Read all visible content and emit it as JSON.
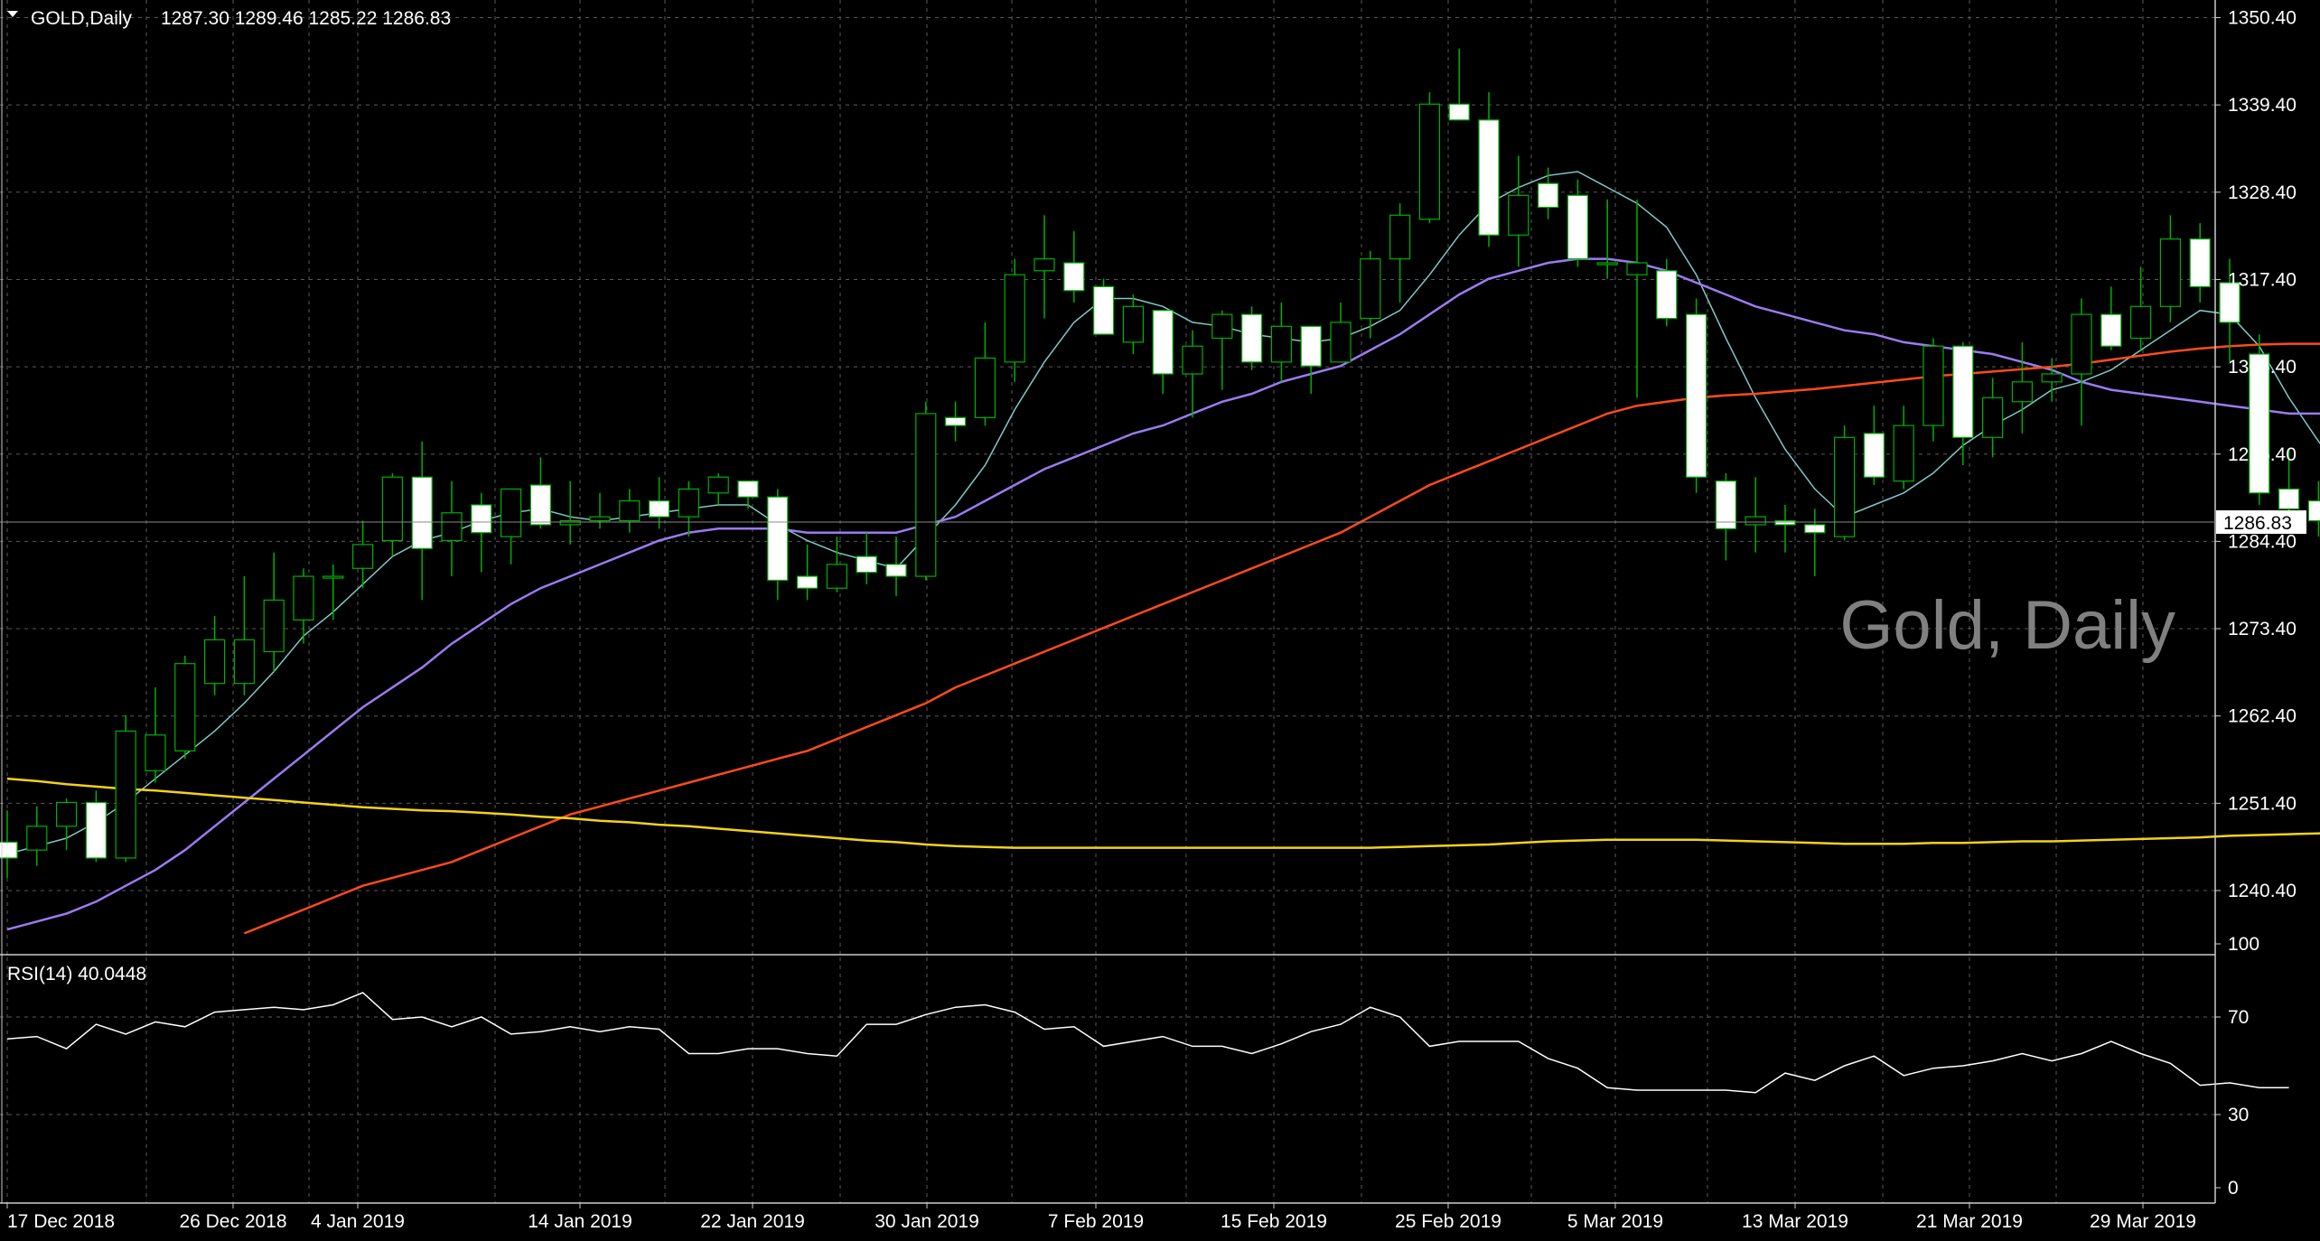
{
  "header": {
    "symbol": "GOLD,Daily",
    "ohlc": "1287.30 1289.46 1285.22 1286.83",
    "watermark": "Gold, Daily"
  },
  "rsi": {
    "label": "RSI(14) 40.0448",
    "levels": [
      100,
      70,
      30,
      0
    ],
    "values": [
      61,
      62,
      57,
      67,
      63,
      68,
      66,
      72,
      73,
      74,
      73,
      75,
      80,
      69,
      70,
      66,
      70,
      63,
      64,
      66,
      64,
      66,
      65,
      55,
      55,
      57,
      57,
      55,
      54,
      67,
      67,
      71,
      74,
      75,
      72,
      65,
      66,
      58,
      60,
      62,
      58,
      58,
      55,
      59,
      64,
      67,
      74,
      70,
      58,
      60,
      60,
      60,
      53,
      49,
      41,
      40,
      40,
      40,
      40,
      39,
      47,
      44,
      50,
      54,
      46,
      49,
      50,
      52,
      55,
      52,
      55,
      60,
      55,
      51,
      42,
      43,
      41,
      41
    ]
  },
  "price_axis": {
    "ticks": [
      "1350.40",
      "1339.40",
      "1328.40",
      "1317.40",
      "1306.40",
      "1295.40",
      "1284.40",
      "1273.40",
      "1262.40",
      "1251.40",
      "1240.40"
    ],
    "current": "1286.83"
  },
  "date_axis": {
    "labels": [
      "17 Dec 2018",
      "26 Dec 2018",
      "4 Jan 2019",
      "14 Jan 2019",
      "22 Jan 2019",
      "30 Jan 2019",
      "7 Feb 2019",
      "15 Feb 2019",
      "25 Feb 2019",
      "5 Mar 2019",
      "13 Mar 2019",
      "21 Mar 2019",
      "29 Mar 2019"
    ]
  },
  "colors": {
    "background": "#000000",
    "grid": "#5a5a5a",
    "bull_body": "#000000",
    "bull_wick": "#00b000",
    "bear_body": "#ffffff",
    "ma_fast": "#7fc9c8",
    "ma_mid": "#9b7bf0",
    "ma_slow": "#ff4b1a",
    "ma_long": "#f2d21b",
    "rsi_line": "#ffffff",
    "watermark": "#808080"
  },
  "chart_data": {
    "type": "candlestick",
    "title": "GOLD,Daily",
    "ylim": [
      1235.0,
      1352.0
    ],
    "candles": [
      [
        1246.5,
        1250.5,
        1242.0,
        1244.5
      ],
      [
        1245.5,
        1251.0,
        1243.5,
        1248.5
      ],
      [
        1248.5,
        1252.0,
        1245.5,
        1251.5
      ],
      [
        1251.5,
        1253.0,
        1244.0,
        1244.5
      ],
      [
        1244.5,
        1262.5,
        1244.0,
        1260.5
      ],
      [
        1255.5,
        1266.0,
        1254.0,
        1260.0
      ],
      [
        1258.0,
        1270.0,
        1257.0,
        1269.0
      ],
      [
        1266.5,
        1275.0,
        1265.0,
        1272.0
      ],
      [
        1266.5,
        1280.0,
        1265.0,
        1272.0
      ],
      [
        1270.5,
        1283.0,
        1268.0,
        1277.0
      ],
      [
        1274.5,
        1281.0,
        1271.5,
        1280.0
      ],
      [
        1280.0,
        1281.5,
        1274.5,
        1280.0
      ],
      [
        1281.0,
        1287.0,
        1278.5,
        1284.0
      ],
      [
        1284.5,
        1293.0,
        1282.5,
        1292.5
      ],
      [
        1292.5,
        1297.0,
        1277.0,
        1283.5
      ],
      [
        1284.5,
        1292.0,
        1280.0,
        1288.0
      ],
      [
        1289.0,
        1290.5,
        1280.5,
        1285.5
      ],
      [
        1285.0,
        1291.0,
        1281.5,
        1291.0
      ],
      [
        1291.5,
        1295.0,
        1286.0,
        1286.5
      ],
      [
        1286.5,
        1292.0,
        1284.0,
        1287.0
      ],
      [
        1287.0,
        1290.5,
        1286.0,
        1287.5
      ],
      [
        1287.0,
        1291.0,
        1285.5,
        1289.5
      ],
      [
        1289.5,
        1292.5,
        1286.0,
        1287.5
      ],
      [
        1287.5,
        1292.0,
        1285.0,
        1291.0
      ],
      [
        1290.5,
        1293.0,
        1289.0,
        1292.5
      ],
      [
        1292.0,
        1291.5,
        1288.5,
        1290.0
      ],
      [
        1290.0,
        1291.0,
        1277.0,
        1279.5
      ],
      [
        1280.0,
        1284.0,
        1277.0,
        1278.5
      ],
      [
        1278.5,
        1285.0,
        1278.0,
        1281.5
      ],
      [
        1282.5,
        1285.5,
        1279.0,
        1280.5
      ],
      [
        1281.5,
        1285.0,
        1277.5,
        1280.0
      ],
      [
        1280.0,
        1302.0,
        1279.5,
        1300.5
      ],
      [
        1300.0,
        1302.0,
        1297.0,
        1299.0
      ],
      [
        1300.0,
        1312.0,
        1299.0,
        1307.5
      ],
      [
        1307.0,
        1320.0,
        1304.5,
        1318.0
      ],
      [
        1318.5,
        1325.5,
        1312.5,
        1320.0
      ],
      [
        1319.5,
        1323.5,
        1314.5,
        1316.0
      ],
      [
        1316.5,
        1317.5,
        1310.5,
        1310.5
      ],
      [
        1309.5,
        1315.5,
        1308.0,
        1314.0
      ],
      [
        1313.5,
        1313.5,
        1303.0,
        1305.5
      ],
      [
        1305.5,
        1311.0,
        1300.0,
        1309.0
      ],
      [
        1310.0,
        1313.5,
        1303.5,
        1313.0
      ],
      [
        1313.0,
        1314.0,
        1306.0,
        1307.0
      ],
      [
        1307.0,
        1314.5,
        1304.5,
        1311.5
      ],
      [
        1311.5,
        1311.5,
        1303.0,
        1306.5
      ],
      [
        1307.0,
        1314.5,
        1307.0,
        1312.0
      ],
      [
        1312.5,
        1321.0,
        1310.0,
        1320.0
      ],
      [
        1320.0,
        1327.0,
        1314.5,
        1325.5
      ],
      [
        1325.0,
        1341.0,
        1324.5,
        1339.5
      ],
      [
        1339.5,
        1346.5,
        1338.0,
        1337.5
      ],
      [
        1337.5,
        1341.0,
        1321.5,
        1323.0
      ],
      [
        1323.0,
        1333.0,
        1319.0,
        1328.0
      ],
      [
        1329.5,
        1331.5,
        1325.0,
        1326.5
      ],
      [
        1328.0,
        1330.0,
        1319.0,
        1320.0
      ],
      [
        1319.5,
        1327.5,
        1317.5,
        1319.5
      ],
      [
        1318.0,
        1327.5,
        1302.5,
        1319.5
      ],
      [
        1318.5,
        1320.0,
        1311.5,
        1312.5
      ],
      [
        1313.0,
        1315.0,
        1290.5,
        1292.5
      ],
      [
        1292.0,
        1293.0,
        1282.0,
        1286.0
      ],
      [
        1286.5,
        1292.5,
        1283.0,
        1287.5
      ],
      [
        1287.0,
        1289.0,
        1283.0,
        1286.5
      ],
      [
        1286.5,
        1288.5,
        1280.0,
        1285.5
      ],
      [
        1285.0,
        1299.0,
        1284.5,
        1297.5
      ],
      [
        1298.0,
        1301.5,
        1291.5,
        1292.5
      ],
      [
        1292.0,
        1301.5,
        1291.0,
        1299.0
      ],
      [
        1299.0,
        1310.0,
        1297.0,
        1309.0
      ],
      [
        1309.0,
        1309.5,
        1294.0,
        1297.5
      ],
      [
        1297.5,
        1305.0,
        1295.0,
        1302.5
      ],
      [
        1302.0,
        1309.5,
        1298.0,
        1304.5
      ],
      [
        1304.5,
        1307.5,
        1302.0,
        1305.5
      ],
      [
        1305.5,
        1315.0,
        1299.0,
        1313.0
      ],
      [
        1313.0,
        1316.5,
        1308.5,
        1309.0
      ],
      [
        1310.0,
        1319.0,
        1308.5,
        1314.0
      ],
      [
        1314.0,
        1325.5,
        1312.0,
        1322.5
      ],
      [
        1322.5,
        1324.5,
        1314.5,
        1316.5
      ],
      [
        1317.0,
        1320.0,
        1307.0,
        1312.0
      ],
      [
        1308.0,
        1310.5,
        1289.0,
        1290.5
      ],
      [
        1291.0,
        1296.0,
        1285.5,
        1288.5
      ],
      [
        1289.5,
        1292.0,
        1285.0,
        1287.0
      ],
      [
        1287.3,
        1289.46,
        1285.22,
        1286.83
      ]
    ],
    "moving_averages": [
      {
        "values": [
          1245.0,
          1246.0,
          1247.0,
          1249.0,
          1251.5,
          1254.5,
          1257.5,
          1260.5,
          1264.0,
          1268.0,
          1272.5,
          1275.5,
          1279.0,
          1282.5,
          1284.5,
          1285.5,
          1287.0,
          1288.0,
          1288.5,
          1287.5,
          1287.0,
          1287.5,
          1288.0,
          1288.5,
          1289.0,
          1289.0,
          1286.5,
          1284.5,
          1283.0,
          1282.0,
          1281.0,
          1285.0,
          1289.0,
          1294.0,
          1301.0,
          1307.0,
          1312.0,
          1315.0,
          1315.0,
          1314.0,
          1312.0,
          1311.5,
          1310.5,
          1310.0,
          1309.5,
          1310.0,
          1311.5,
          1313.5,
          1318.0,
          1323.0,
          1327.0,
          1329.0,
          1330.5,
          1331.0,
          1329.0,
          1327.0,
          1324.0,
          1318.0,
          1310.0,
          1302.5,
          1296.0,
          1291.0,
          1287.5,
          1289.0,
          1290.5,
          1293.0,
          1296.5,
          1299.0,
          1301.0,
          1303.5,
          1304.5,
          1306.0,
          1308.5,
          1311.0,
          1313.5,
          1313.0,
          1309.0,
          1302.5,
          1297.0,
          1292.5
        ]
      },
      {
        "values": [
          1235.5,
          1236.5,
          1237.5,
          1239.0,
          1241.0,
          1243.0,
          1245.5,
          1248.5,
          1251.5,
          1254.5,
          1257.5,
          1260.5,
          1263.5,
          1266.0,
          1268.5,
          1271.5,
          1274.0,
          1276.5,
          1278.5,
          1280.0,
          1281.5,
          1283.0,
          1284.5,
          1285.5,
          1286.0,
          1286.0,
          1286.0,
          1285.5,
          1285.5,
          1285.5,
          1285.5,
          1286.5,
          1287.5,
          1289.5,
          1291.5,
          1293.5,
          1295.0,
          1296.5,
          1298.0,
          1299.0,
          1300.5,
          1302.0,
          1303.0,
          1304.5,
          1305.5,
          1306.5,
          1308.5,
          1310.5,
          1313.0,
          1315.5,
          1317.5,
          1318.5,
          1319.5,
          1320.0,
          1320.0,
          1319.5,
          1318.5,
          1317.0,
          1315.5,
          1314.0,
          1313.0,
          1312.0,
          1311.0,
          1310.5,
          1309.5,
          1309.0,
          1308.5,
          1308.0,
          1307.0,
          1306.0,
          1304.5,
          1303.5,
          1303.0,
          1302.5,
          1302.0,
          1301.5,
          1301.0,
          1300.5,
          1300.5,
          1300.5
        ]
      },
      {
        "values": [
          null,
          null,
          null,
          null,
          null,
          null,
          null,
          null,
          1235.0,
          1236.5,
          1238.0,
          1239.5,
          1241.0,
          1242.0,
          1243.0,
          1244.0,
          1245.5,
          1247.0,
          1248.5,
          1250.0,
          1251.0,
          1252.0,
          1253.0,
          1254.0,
          1255.0,
          1256.0,
          1257.0,
          1258.0,
          1259.5,
          1261.0,
          1262.5,
          1264.0,
          1266.0,
          1267.5,
          1269.0,
          1270.5,
          1272.0,
          1273.5,
          1275.0,
          1276.5,
          1278.0,
          1279.5,
          1281.0,
          1282.5,
          1284.0,
          1285.5,
          1287.5,
          1289.5,
          1291.5,
          1293.0,
          1294.5,
          1296.0,
          1297.5,
          1299.0,
          1300.5,
          1301.5,
          1302.0,
          1302.5,
          1302.8,
          1303.0,
          1303.3,
          1303.6,
          1304.0,
          1304.4,
          1304.8,
          1305.2,
          1305.5,
          1305.8,
          1306.1,
          1306.4,
          1306.8,
          1307.3,
          1307.8,
          1308.3,
          1308.7,
          1309.0,
          1309.2,
          1309.3,
          1309.3,
          1309.3
        ]
      },
      {
        "values": [
          1254.5,
          1254.2,
          1253.8,
          1253.5,
          1253.2,
          1253.0,
          1252.7,
          1252.4,
          1252.1,
          1251.8,
          1251.5,
          1251.2,
          1250.9,
          1250.7,
          1250.5,
          1250.4,
          1250.2,
          1250.0,
          1249.7,
          1249.5,
          1249.2,
          1249.0,
          1248.7,
          1248.5,
          1248.2,
          1247.9,
          1247.6,
          1247.3,
          1247.0,
          1246.7,
          1246.5,
          1246.2,
          1246.0,
          1245.9,
          1245.8,
          1245.8,
          1245.8,
          1245.8,
          1245.8,
          1245.8,
          1245.8,
          1245.8,
          1245.8,
          1245.8,
          1245.8,
          1245.8,
          1245.8,
          1245.9,
          1246.0,
          1246.1,
          1246.2,
          1246.4,
          1246.6,
          1246.7,
          1246.8,
          1246.8,
          1246.8,
          1246.8,
          1246.7,
          1246.6,
          1246.5,
          1246.4,
          1246.3,
          1246.3,
          1246.3,
          1246.4,
          1246.4,
          1246.5,
          1246.6,
          1246.6,
          1246.7,
          1246.8,
          1246.9,
          1247.0,
          1247.1,
          1247.3,
          1247.4,
          1247.5,
          1247.6,
          1247.7
        ]
      }
    ]
  }
}
